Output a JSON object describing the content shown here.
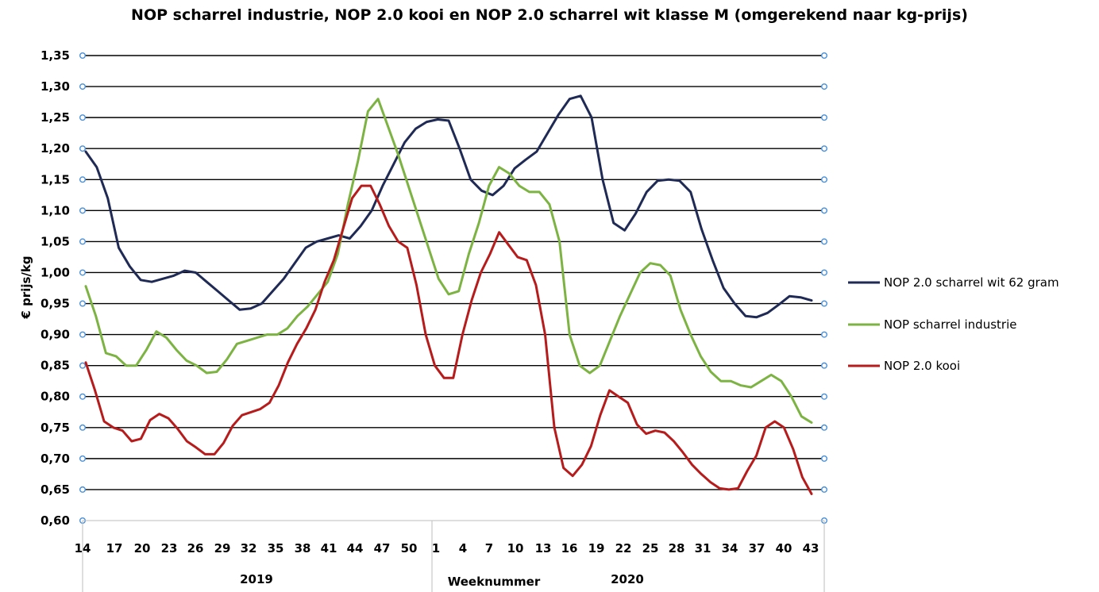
{
  "chart_data": {
    "type": "line",
    "title": "NOP scharrel industrie, NOP 2.0 kooi en NOP 2.0 scharrel wit klasse M (omgerekend naar kg-prijs)",
    "ylabel": "€ prijs/kg",
    "xlabel": "Weeknummer",
    "ylim": [
      0.6,
      1.35
    ],
    "y_ticks": [
      "1,35",
      "1,30",
      "1,25",
      "1,20",
      "1,15",
      "1,10",
      "1,05",
      "1,00",
      "0,95",
      "0,90",
      "0,85",
      "0,80",
      "0,75",
      "0,70",
      "0,65",
      "0,60"
    ],
    "x_tick_labels": [
      "14",
      "17",
      "20",
      "23",
      "26",
      "29",
      "32",
      "35",
      "38",
      "41",
      "44",
      "47",
      "50",
      "1",
      "4",
      "7",
      "10",
      "13",
      "16",
      "19",
      "22",
      "25",
      "28",
      "31",
      "34",
      "37",
      "40",
      "43"
    ],
    "year_groups": [
      {
        "label": "2019",
        "weeks_from": 14,
        "weeks_to": 52
      },
      {
        "label": "2020",
        "weeks_from": 1,
        "weeks_to": 43
      }
    ],
    "grid": true,
    "legend_position": "right",
    "series": [
      {
        "name": "NOP 2.0 scharrel wit 62 gram",
        "color": "#1f2a55",
        "values": [
          1.195,
          1.17,
          1.12,
          1.04,
          1.01,
          0.988,
          0.985,
          0.99,
          0.995,
          1.003,
          1.0,
          0.985,
          0.97,
          0.955,
          0.94,
          0.942,
          0.95,
          0.97,
          0.99,
          1.015,
          1.04,
          1.05,
          1.055,
          1.06,
          1.055,
          1.075,
          1.1,
          1.14,
          1.175,
          1.21,
          1.232,
          1.243,
          1.247,
          1.245,
          1.2,
          1.15,
          1.132,
          1.125,
          1.14,
          1.168,
          1.182,
          1.195,
          1.225,
          1.255,
          1.28,
          1.285,
          1.25,
          1.15,
          1.08,
          1.068,
          1.095,
          1.13,
          1.148,
          1.15,
          1.148,
          1.13,
          1.07,
          1.02,
          0.975,
          0.95,
          0.93,
          0.928,
          0.935,
          0.948,
          0.962,
          0.96,
          0.955
        ]
      },
      {
        "name": "NOP scharrel industrie",
        "color": "#7cb342",
        "values": [
          0.978,
          0.93,
          0.87,
          0.865,
          0.85,
          0.85,
          0.875,
          0.905,
          0.895,
          0.875,
          0.858,
          0.85,
          0.838,
          0.84,
          0.86,
          0.885,
          0.89,
          0.895,
          0.9,
          0.9,
          0.91,
          0.93,
          0.945,
          0.965,
          0.985,
          1.03,
          1.11,
          1.18,
          1.26,
          1.28,
          1.235,
          1.19,
          1.14,
          1.09,
          1.04,
          0.99,
          0.965,
          0.97,
          1.03,
          1.08,
          1.14,
          1.17,
          1.16,
          1.14,
          1.13,
          1.13,
          1.11,
          1.05,
          0.9,
          0.85,
          0.838,
          0.85,
          0.89,
          0.93,
          0.965,
          1.0,
          1.015,
          1.012,
          0.995,
          0.94,
          0.9,
          0.865,
          0.84,
          0.825,
          0.825,
          0.818,
          0.815,
          0.825,
          0.835,
          0.825,
          0.8,
          0.768,
          0.758
        ]
      },
      {
        "name": "NOP 2.0 kooi",
        "color": "#b71c1c",
        "values": [
          0.855,
          0.81,
          0.76,
          0.75,
          0.745,
          0.728,
          0.732,
          0.762,
          0.772,
          0.765,
          0.748,
          0.728,
          0.718,
          0.707,
          0.707,
          0.725,
          0.753,
          0.77,
          0.775,
          0.78,
          0.79,
          0.818,
          0.855,
          0.885,
          0.91,
          0.94,
          0.985,
          1.02,
          1.07,
          1.12,
          1.14,
          1.14,
          1.11,
          1.075,
          1.05,
          1.04,
          0.98,
          0.9,
          0.85,
          0.83,
          0.83,
          0.9,
          0.955,
          1.0,
          1.03,
          1.065,
          1.045,
          1.025,
          1.02,
          0.98,
          0.9,
          0.75,
          0.685,
          0.672,
          0.69,
          0.72,
          0.77,
          0.81,
          0.8,
          0.79,
          0.755,
          0.74,
          0.745,
          0.742,
          0.728,
          0.71,
          0.69,
          0.675,
          0.662,
          0.652,
          0.65,
          0.652,
          0.68,
          0.705,
          0.75,
          0.76,
          0.75,
          0.715,
          0.67,
          0.643
        ]
      }
    ]
  }
}
